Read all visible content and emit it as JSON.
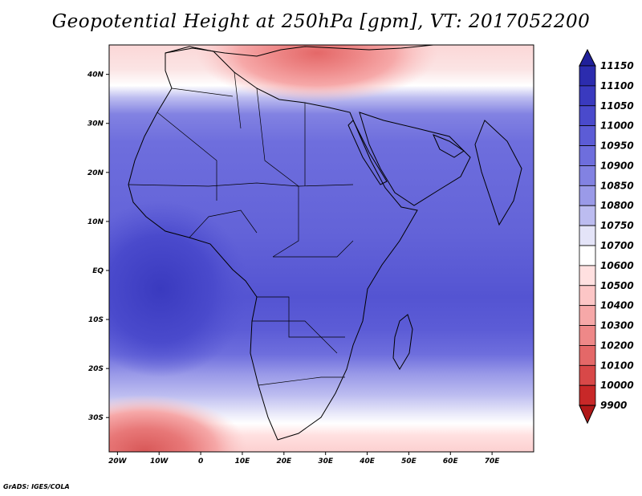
{
  "title": "Geopotential Height at 250hPa [gpm], VT: 2017052200",
  "footer": "GrADS: IGES/COLA",
  "map": {
    "region": "Africa and surrounding seas",
    "lon_range": [
      -22,
      80
    ],
    "lat_range": [
      -37,
      46
    ],
    "x_ticks": [
      {
        "lon": -20,
        "label": "20W"
      },
      {
        "lon": -10,
        "label": "10W"
      },
      {
        "lon": 0,
        "label": "0"
      },
      {
        "lon": 10,
        "label": "10E"
      },
      {
        "lon": 20,
        "label": "20E"
      },
      {
        "lon": 30,
        "label": "30E"
      },
      {
        "lon": 40,
        "label": "40E"
      },
      {
        "lon": 50,
        "label": "50E"
      },
      {
        "lon": 60,
        "label": "60E"
      },
      {
        "lon": 70,
        "label": "70E"
      }
    ],
    "y_ticks": [
      {
        "lat": 40,
        "label": "40N"
      },
      {
        "lat": 30,
        "label": "30N"
      },
      {
        "lat": 20,
        "label": "20N"
      },
      {
        "lat": 10,
        "label": "10N"
      },
      {
        "lat": 0,
        "label": "EQ"
      },
      {
        "lat": -10,
        "label": "10S"
      },
      {
        "lat": -20,
        "label": "20S"
      },
      {
        "lat": -30,
        "label": "30S"
      }
    ]
  },
  "colorbar": {
    "levels": [
      "11150",
      "11100",
      "11050",
      "11000",
      "10950",
      "10900",
      "10850",
      "10800",
      "10750",
      "10700",
      "10600",
      "10500",
      "10400",
      "10300",
      "10200",
      "10100",
      "10000",
      "9900"
    ],
    "colors": [
      "#20209a",
      "#2c2cae",
      "#3a3abf",
      "#4a4acc",
      "#5c5cd6",
      "#6e6edd",
      "#8282e2",
      "#9a9ae8",
      "#bcbcf0",
      "#e4e4f8",
      "#ffffff",
      "#ffe0e0",
      "#fcc6c6",
      "#f6a8a8",
      "#ee8888",
      "#e46868",
      "#d84848",
      "#c82828",
      "#b01818"
    ]
  },
  "chart_data": {
    "type": "heatmap",
    "title": "Geopotential Height at 250hPa [gpm], VT: 2017052200",
    "variable": "Geopotential Height at 250hPa",
    "units": "gpm",
    "valid_time": "2017052200",
    "colorbar_levels": [
      11150,
      11100,
      11050,
      11000,
      10950,
      10900,
      10850,
      10800,
      10750,
      10700,
      10600,
      10500,
      10400,
      10300,
      10200,
      10100,
      10000,
      9900
    ],
    "field_by_latitude": [
      {
        "lat": 42,
        "value": 10550
      },
      {
        "lat": 38,
        "value": 10650
      },
      {
        "lat": 34,
        "value": 10780
      },
      {
        "lat": 30,
        "value": 10880
      },
      {
        "lat": 25,
        "value": 10920
      },
      {
        "lat": 15,
        "value": 10950
      },
      {
        "lat": 5,
        "value": 10970
      },
      {
        "lat": -5,
        "value": 10990
      },
      {
        "lat": -12,
        "value": 11000
      },
      {
        "lat": -18,
        "value": 10950
      },
      {
        "lat": -22,
        "value": 10880
      },
      {
        "lat": -26,
        "value": 10800
      },
      {
        "lat": -30,
        "value": 10720
      },
      {
        "lat": -34,
        "value": 10600
      }
    ],
    "features": [
      {
        "name": "trough over eastern Mediterranean",
        "lon": 30,
        "lat": 42,
        "value": 10450
      },
      {
        "name": "ridge over Arabian Sea",
        "lon": 62,
        "lat": 12,
        "value": 10950
      },
      {
        "name": "trough over South Atlantic",
        "lon": -15,
        "lat": -36,
        "value": 10400
      }
    ]
  }
}
